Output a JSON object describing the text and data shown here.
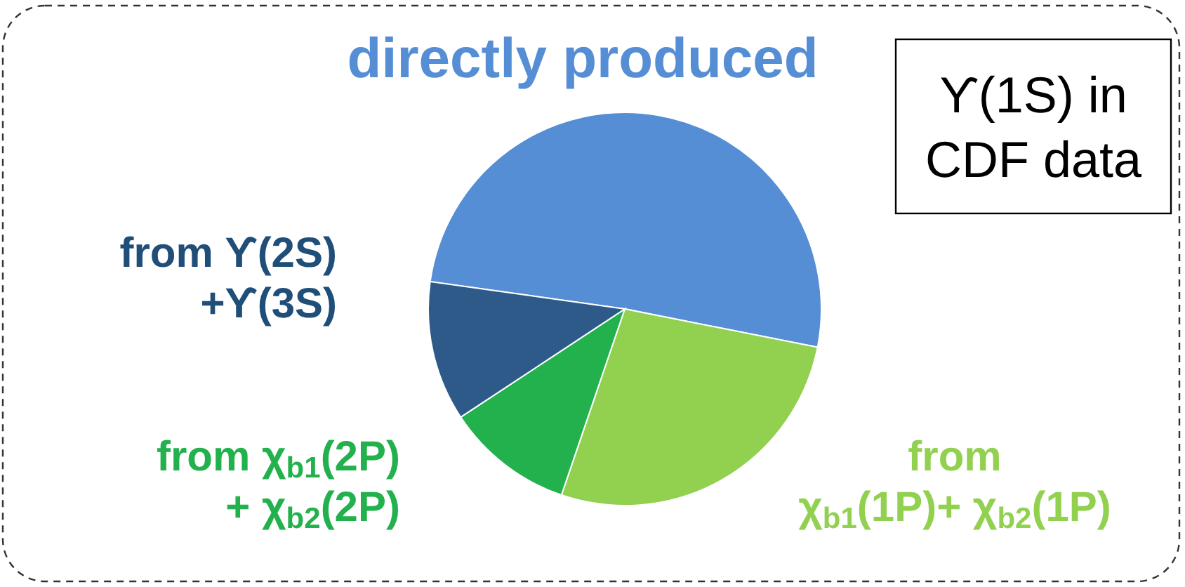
{
  "chart_data": {
    "type": "pie",
    "categories": [
      "directly produced",
      "from\nχ$_{b1}$(1P)+ χ$_{b2}$(1P)",
      "from χ$_{b1}$(2P)\n+ χ$_{b2}$(2P)",
      "from ϒ(2S)\n+ϒ(3S)"
    ],
    "values": [
      50.9,
      27.1,
      10.5,
      11.5
    ],
    "colors": [
      "#558ed5",
      "#92d050",
      "#22b14c",
      "#2e5a8a"
    ],
    "annotations": [
      "ϒ(1S) in\nCDF data"
    ],
    "legend": false
  }
}
